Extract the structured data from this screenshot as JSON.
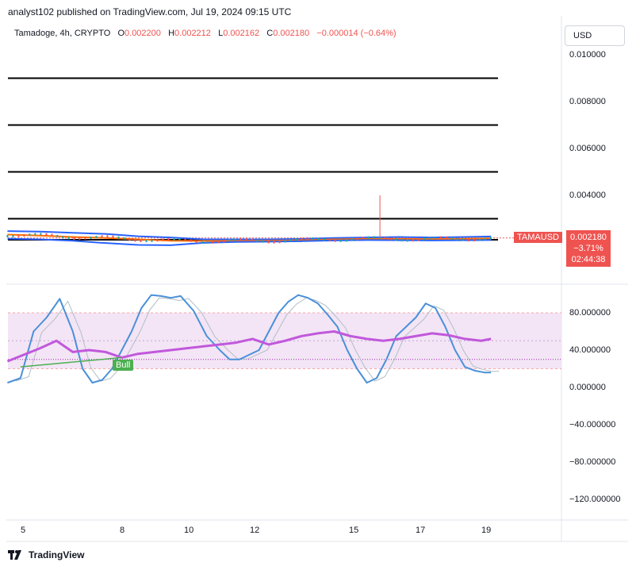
{
  "header": {
    "published": "analyst102 published on TradingView.com, Jul 19, 2024 09:15 UTC"
  },
  "symbol_line": {
    "name": "Tamadoge, 4h, CRYPTO",
    "o_label": "O",
    "o_value": "0.002200",
    "h_label": "H",
    "h_value": "0.002212",
    "l_label": "L",
    "l_value": "0.002162",
    "c_label": "C",
    "c_value": "0.002180",
    "change": "−0.000014 (−0.64%)"
  },
  "currency_button": "USD",
  "price_label": {
    "ticker": "TAMAUSD",
    "price": "0.002180",
    "pct": "−3.71%",
    "countdown": "02:44:38"
  },
  "bull_label": "Bull",
  "footer": {
    "brand": "TradingView",
    "logo": "tradingview-logo-icon"
  },
  "colors": {
    "down": "#ef5350",
    "up": "#26a69a",
    "stoch": "#4a90d9",
    "rsi": "#c158dc",
    "bull": "#4caf50",
    "band": "#f3e5f5"
  },
  "chart_data": [
    {
      "type": "line",
      "panel": "price",
      "ylim": [
        0.001,
        0.0105
      ],
      "y_ticks": [
        "0.010000",
        "0.008000",
        "0.006000",
        "0.004000"
      ],
      "x_ticks": [
        "5",
        "8",
        "10",
        "12",
        "15",
        "17",
        "19"
      ],
      "horizontal_levels": [
        0.009,
        0.007,
        0.005,
        0.003,
        0.0021
      ],
      "spike": {
        "x_day": 15.9,
        "high": 0.004,
        "low": 0.0022
      },
      "series": [
        {
          "role": "upper-band",
          "x": [
            4.5,
            5.5,
            6.5,
            7.5,
            8.5,
            9.5,
            10.5,
            11.5,
            12.5,
            13.5,
            14.5,
            15.5,
            16.5,
            17.5,
            18.5,
            19.3
          ],
          "values": [
            0.00247,
            0.00245,
            0.0024,
            0.00235,
            0.00225,
            0.0022,
            0.00212,
            0.00212,
            0.00212,
            0.00214,
            0.00218,
            0.0022,
            0.00222,
            0.0022,
            0.00222,
            0.00224
          ]
        },
        {
          "role": "middle-band",
          "x": [
            4.5,
            5.5,
            6.5,
            7.5,
            8.5,
            9.5,
            10.5,
            11.5,
            12.5,
            13.5,
            14.5,
            15.5,
            16.5,
            17.5,
            18.5,
            19.3
          ],
          "values": [
            0.00232,
            0.00228,
            0.00222,
            0.00218,
            0.00212,
            0.00206,
            0.00205,
            0.00205,
            0.00206,
            0.00208,
            0.00212,
            0.00214,
            0.00214,
            0.00213,
            0.00214,
            0.00216
          ]
        },
        {
          "role": "lower-band",
          "x": [
            4.5,
            5.5,
            6.5,
            7.5,
            8.5,
            9.5,
            10.5,
            11.5,
            12.5,
            13.5,
            14.5,
            15.5,
            16.5,
            17.5,
            18.5,
            19.3
          ],
          "values": [
            0.00215,
            0.00212,
            0.00206,
            0.00196,
            0.00188,
            0.00187,
            0.00197,
            0.00201,
            0.00202,
            0.00204,
            0.00207,
            0.00209,
            0.00208,
            0.00207,
            0.00208,
            0.00209
          ]
        }
      ]
    },
    {
      "type": "line",
      "panel": "oscillator",
      "ylim": [
        -140,
        118
      ],
      "y_ticks": [
        "80.000000",
        "40.000000",
        "0.000000",
        "−40.000000",
        "−80.000000",
        "−120.000000"
      ],
      "overbought": 80,
      "oversold": 20,
      "series": [
        {
          "role": "stochastic",
          "x": [
            4.5,
            4.9,
            5.3,
            5.7,
            6.1,
            6.5,
            6.8,
            7.1,
            7.4,
            7.7,
            8.0,
            8.3,
            8.6,
            8.9,
            9.2,
            9.5,
            9.8,
            10.2,
            10.6,
            11.0,
            11.3,
            11.6,
            11.9,
            12.2,
            12.5,
            12.8,
            13.1,
            13.4,
            13.7,
            14.0,
            14.3,
            14.6,
            14.9,
            15.2,
            15.5,
            15.8,
            16.1,
            16.4,
            16.7,
            17.0,
            17.3,
            17.6,
            17.9,
            18.2,
            18.5,
            18.8,
            19.1,
            19.3
          ],
          "values": [
            5,
            10,
            60,
            75,
            95,
            60,
            20,
            5,
            8,
            20,
            40,
            60,
            85,
            99,
            98,
            96,
            98,
            82,
            55,
            40,
            30,
            30,
            35,
            40,
            60,
            80,
            92,
            99,
            96,
            90,
            78,
            65,
            40,
            20,
            5,
            10,
            30,
            55,
            65,
            75,
            90,
            85,
            65,
            40,
            22,
            18,
            16,
            16
          ]
        },
        {
          "role": "rsi",
          "x": [
            4.5,
            5.0,
            5.5,
            6.0,
            6.5,
            7.0,
            7.5,
            8.0,
            8.5,
            9.0,
            9.5,
            10.0,
            10.5,
            11.0,
            11.5,
            12.0,
            12.5,
            13.0,
            13.5,
            14.0,
            14.5,
            15.0,
            15.5,
            16.0,
            16.5,
            17.0,
            17.5,
            18.0,
            18.5,
            19.0,
            19.3
          ],
          "values": [
            28,
            35,
            42,
            50,
            38,
            40,
            38,
            32,
            36,
            38,
            40,
            42,
            44,
            46,
            48,
            52,
            46,
            50,
            55,
            58,
            60,
            55,
            52,
            50,
            52,
            55,
            58,
            56,
            52,
            50,
            52
          ]
        },
        {
          "role": "divergence",
          "x": [
            4.9,
            8.0
          ],
          "values": [
            22,
            32
          ]
        }
      ]
    }
  ]
}
